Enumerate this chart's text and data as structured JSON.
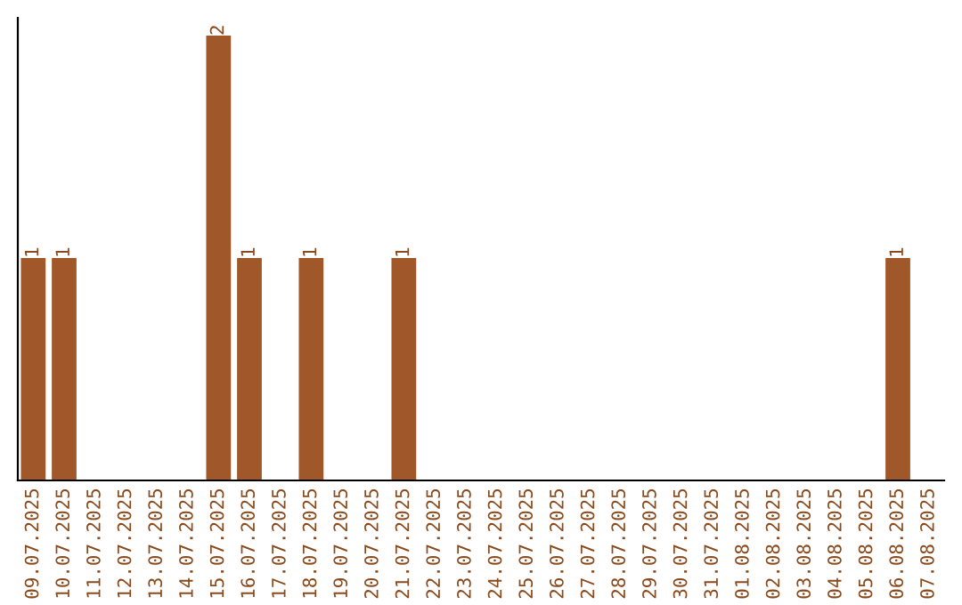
{
  "chart_data": {
    "type": "bar",
    "categories": [
      "09.07.2025",
      "10.07.2025",
      "11.07.2025",
      "12.07.2025",
      "13.07.2025",
      "14.07.2025",
      "15.07.2025",
      "16.07.2025",
      "17.07.2025",
      "18.07.2025",
      "19.07.2025",
      "20.07.2025",
      "21.07.2025",
      "22.07.2025",
      "23.07.2025",
      "24.07.2025",
      "25.07.2025",
      "26.07.2025",
      "27.07.2025",
      "28.07.2025",
      "29.07.2025",
      "30.07.2025",
      "31.07.2025",
      "01.08.2025",
      "02.08.2025",
      "03.08.2025",
      "04.08.2025",
      "05.08.2025",
      "06.08.2025",
      "07.08.2025"
    ],
    "values": [
      1,
      1,
      0,
      0,
      0,
      0,
      2,
      1,
      0,
      1,
      0,
      0,
      1,
      0,
      0,
      0,
      0,
      0,
      0,
      0,
      0,
      0,
      0,
      0,
      0,
      0,
      0,
      0,
      1,
      0
    ],
    "value_labels": [
      "1",
      "1",
      null,
      null,
      null,
      null,
      "2",
      "1",
      null,
      "1",
      null,
      null,
      "1",
      null,
      null,
      null,
      null,
      null,
      null,
      null,
      null,
      null,
      null,
      null,
      null,
      null,
      null,
      null,
      "1",
      null
    ],
    "color": "#a0582a",
    "tick_labels": "x",
    "grid": false,
    "legend": false
  }
}
